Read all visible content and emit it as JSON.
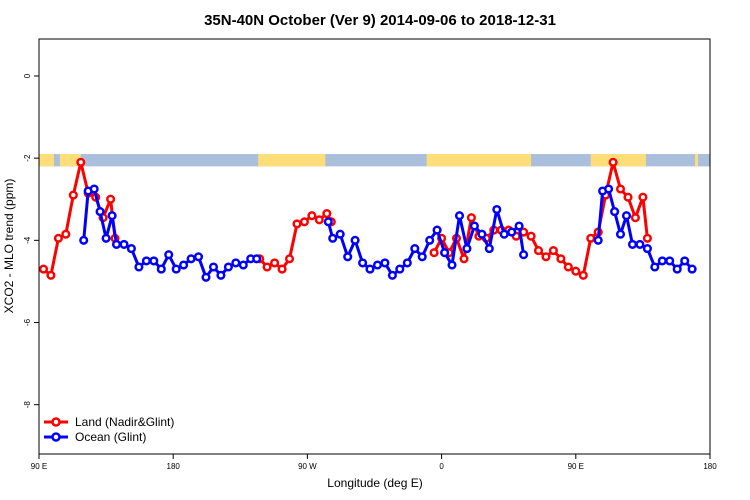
{
  "chart_data": {
    "type": "line",
    "title": "35N-40N October (Ver 9)   2014-09-06 to 2018-12-31",
    "xlabel": "Longitude (deg E)",
    "ylabel": "XCO2 - MLO trend (ppm)",
    "xlim": [
      90,
      540
    ],
    "ylim": [
      -9.2,
      0.9
    ],
    "xticks": [
      {
        "value": 90,
        "label": "90 E"
      },
      {
        "value": 180,
        "label": "180"
      },
      {
        "value": 270,
        "label": "90 W"
      },
      {
        "value": 360,
        "label": "0"
      },
      {
        "value": 450,
        "label": "90 E"
      },
      {
        "value": 540,
        "label": "180"
      }
    ],
    "yticks": [
      {
        "value": 0,
        "label": "0"
      },
      {
        "value": -2,
        "label": "-2"
      },
      {
        "value": -4,
        "label": "-4"
      },
      {
        "value": -6,
        "label": "-6"
      },
      {
        "value": -8,
        "label": "-8"
      }
    ],
    "legend_position": "bottom-left",
    "land_mask": {
      "y_range": [
        -2.2,
        -1.9
      ],
      "land_color": "#ffde7a",
      "ocean_color": "#a9bfdc",
      "land_segments": [
        [
          90,
          100
        ],
        [
          104,
          118
        ],
        [
          237,
          282
        ],
        [
          350,
          420
        ],
        [
          460,
          497
        ],
        [
          530,
          532
        ]
      ]
    },
    "series": [
      {
        "name": "Land (Nadir&Glint)",
        "color": "#ff0000",
        "segments": [
          [
            [
              93,
              -4.7
            ],
            [
              98,
              -4.85
            ],
            [
              103,
              -3.95
            ],
            [
              108,
              -3.85
            ],
            [
              113,
              -2.9
            ],
            [
              118,
              -2.1
            ],
            [
              123,
              -2.85
            ],
            [
              128,
              -2.95
            ],
            [
              133,
              -3.45
            ],
            [
              138,
              -3.0
            ],
            [
              141,
              -3.95
            ]
          ],
          [
            [
              238,
              -4.45
            ],
            [
              243,
              -4.65
            ],
            [
              248,
              -4.55
            ],
            [
              253,
              -4.7
            ],
            [
              258,
              -4.45
            ],
            [
              263,
              -3.6
            ],
            [
              268,
              -3.55
            ],
            [
              273,
              -3.4
            ],
            [
              278,
              -3.5
            ],
            [
              283,
              -3.35
            ],
            [
              286,
              -3.55
            ]
          ],
          [
            [
              355,
              -4.3
            ],
            [
              360,
              -3.95
            ],
            [
              365,
              -4.3
            ],
            [
              370,
              -3.95
            ],
            [
              375,
              -4.45
            ],
            [
              380,
              -3.45
            ],
            [
              385,
              -3.9
            ],
            [
              390,
              -3.95
            ],
            [
              395,
              -3.75
            ],
            [
              400,
              -3.75
            ],
            [
              405,
              -3.75
            ],
            [
              410,
              -3.9
            ],
            [
              415,
              -3.8
            ],
            [
              420,
              -3.9
            ],
            [
              425,
              -4.25
            ],
            [
              430,
              -4.4
            ],
            [
              435,
              -4.25
            ],
            [
              440,
              -4.45
            ],
            [
              445,
              -4.65
            ],
            [
              450,
              -4.75
            ],
            [
              455,
              -4.85
            ],
            [
              460,
              -3.95
            ],
            [
              465,
              -3.8
            ],
            [
              470,
              -2.9
            ],
            [
              475,
              -2.1
            ],
            [
              480,
              -2.75
            ],
            [
              485,
              -2.95
            ],
            [
              490,
              -3.45
            ],
            [
              495,
              -2.95
            ],
            [
              498,
              -3.95
            ]
          ]
        ]
      },
      {
        "name": "Ocean (Glint)",
        "color": "#0000ff",
        "segments": [
          [
            [
              120,
              -4.0
            ],
            [
              123,
              -2.8
            ],
            [
              127,
              -2.75
            ],
            [
              131,
              -3.3
            ],
            [
              135,
              -3.95
            ],
            [
              139,
              -3.4
            ],
            [
              142,
              -4.1
            ],
            [
              147,
              -4.1
            ],
            [
              152,
              -4.2
            ],
            [
              157,
              -4.65
            ],
            [
              162,
              -4.5
            ],
            [
              167,
              -4.5
            ],
            [
              172,
              -4.7
            ],
            [
              177,
              -4.35
            ],
            [
              182,
              -4.7
            ],
            [
              187,
              -4.6
            ],
            [
              192,
              -4.45
            ],
            [
              197,
              -4.4
            ],
            [
              202,
              -4.9
            ],
            [
              207,
              -4.65
            ],
            [
              212,
              -4.85
            ],
            [
              217,
              -4.65
            ],
            [
              222,
              -4.55
            ],
            [
              227,
              -4.6
            ],
            [
              232,
              -4.45
            ],
            [
              236,
              -4.45
            ]
          ],
          [
            [
              284,
              -3.55
            ],
            [
              287,
              -3.95
            ],
            [
              292,
              -3.85
            ],
            [
              297,
              -4.4
            ],
            [
              302,
              -4.0
            ],
            [
              307,
              -4.55
            ],
            [
              312,
              -4.7
            ],
            [
              317,
              -4.6
            ],
            [
              322,
              -4.55
            ],
            [
              327,
              -4.85
            ],
            [
              332,
              -4.7
            ],
            [
              337,
              -4.55
            ],
            [
              342,
              -4.2
            ],
            [
              347,
              -4.4
            ],
            [
              352,
              -4.0
            ],
            [
              357,
              -3.75
            ],
            [
              362,
              -4.3
            ],
            [
              367,
              -4.6
            ],
            [
              372,
              -3.4
            ],
            [
              377,
              -4.2
            ],
            [
              382,
              -3.65
            ],
            [
              387,
              -3.85
            ],
            [
              392,
              -4.2
            ],
            [
              397,
              -3.25
            ],
            [
              402,
              -3.85
            ],
            [
              407,
              -3.8
            ],
            [
              412,
              -3.65
            ],
            [
              415,
              -4.35
            ]
          ],
          [
            [
              465,
              -4.0
            ],
            [
              468,
              -2.8
            ],
            [
              472,
              -2.75
            ],
            [
              476,
              -3.3
            ],
            [
              480,
              -3.85
            ],
            [
              484,
              -3.4
            ],
            [
              488,
              -4.1
            ],
            [
              493,
              -4.1
            ],
            [
              498,
              -4.2
            ],
            [
              503,
              -4.65
            ],
            [
              508,
              -4.5
            ],
            [
              513,
              -4.5
            ],
            [
              518,
              -4.7
            ],
            [
              523,
              -4.5
            ],
            [
              528,
              -4.7
            ]
          ]
        ]
      }
    ]
  }
}
